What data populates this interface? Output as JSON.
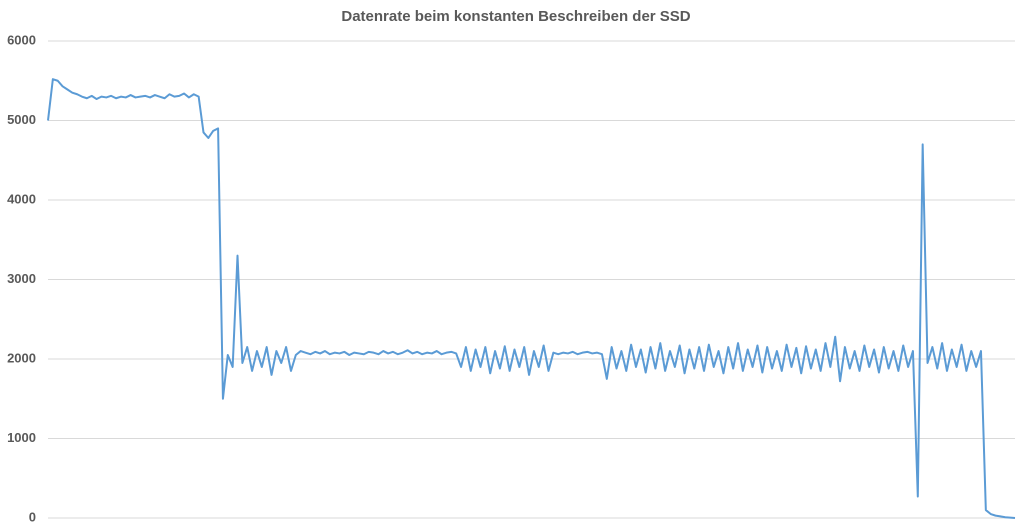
{
  "chart_data": {
    "type": "line",
    "title": "Datenrate beim konstanten Beschreiben der SSD",
    "series": [
      {
        "color": "#5b9bd5",
        "values": [
          5000,
          5520,
          5500,
          5430,
          5390,
          5350,
          5330,
          5300,
          5280,
          5310,
          5270,
          5300,
          5290,
          5310,
          5280,
          5300,
          5290,
          5320,
          5290,
          5300,
          5310,
          5290,
          5320,
          5300,
          5280,
          5330,
          5300,
          5310,
          5340,
          5290,
          5330,
          5300,
          4850,
          4780,
          4870,
          4900,
          1500,
          2050,
          1900,
          3300,
          1950,
          2150,
          1850,
          2100,
          1900,
          2150,
          1800,
          2100,
          1950,
          2150,
          1850,
          2050,
          2100,
          2080,
          2060,
          2090,
          2070,
          2100,
          2060,
          2080,
          2070,
          2090,
          2050,
          2080,
          2070,
          2060,
          2090,
          2080,
          2060,
          2100,
          2070,
          2090,
          2060,
          2080,
          2110,
          2070,
          2090,
          2060,
          2080,
          2070,
          2100,
          2060,
          2080,
          2090,
          2070,
          1900,
          2150,
          1850,
          2120,
          1900,
          2150,
          1820,
          2100,
          1880,
          2160,
          1850,
          2120,
          1900,
          2150,
          1800,
          2100,
          1900,
          2170,
          1850,
          2080,
          2060,
          2080,
          2070,
          2090,
          2060,
          2080,
          2090,
          2070,
          2080,
          2060,
          1750,
          2150,
          1880,
          2100,
          1850,
          2180,
          1900,
          2120,
          1830,
          2150,
          1880,
          2200,
          1850,
          2100,
          1900,
          2170,
          1820,
          2120,
          1880,
          2150,
          1850,
          2180,
          1900,
          2100,
          1820,
          2150,
          1880,
          2200,
          1850,
          2120,
          1900,
          2170,
          1830,
          2150,
          1880,
          2100,
          1850,
          2180,
          1900,
          2140,
          1820,
          2160,
          1880,
          2120,
          1850,
          2200,
          1900,
          2280,
          1720,
          2150,
          1880,
          2100,
          1850,
          2170,
          1900,
          2120,
          1830,
          2150,
          1880,
          2100,
          1850,
          2170,
          1900,
          2100,
          270,
          4700,
          1950,
          2150,
          1880,
          2200,
          1850,
          2120,
          1900,
          2180,
          1850,
          2100,
          1900,
          2100,
          100,
          50,
          30,
          20,
          10,
          5,
          0
        ]
      }
    ],
    "ylim": [
      0,
      6000
    ],
    "yticks": [
      0,
      1000,
      2000,
      3000,
      4000,
      5000,
      6000
    ],
    "grid": true
  }
}
